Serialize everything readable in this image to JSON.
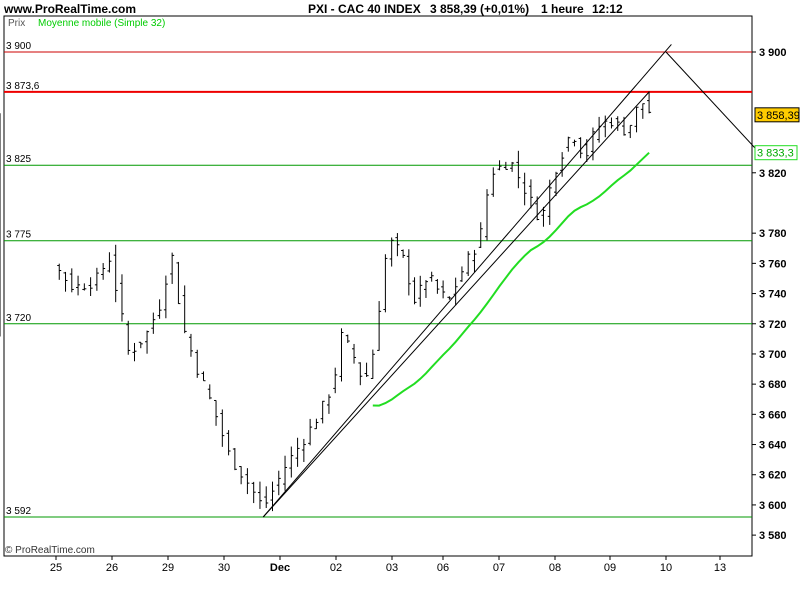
{
  "header": {
    "site": "www.ProRealTime.com",
    "instrument": "PXI - CAC 40 INDEX",
    "last_quote": "3 858,39 (+0,01%)",
    "period": "1 heure",
    "time": "12:12"
  },
  "chart_data": {
    "type": "ohlc",
    "title": "PXI - CAC 40 INDEX",
    "price_label": "Prix",
    "watermark": "© ProRealTime.com",
    "ylim": [
      3570,
      3915
    ],
    "yticks": [
      3580,
      3600,
      3620,
      3640,
      3660,
      3680,
      3700,
      3720,
      3740,
      3760,
      3780,
      3820,
      3900
    ],
    "ytick_labels": [
      "3 580",
      "3 600",
      "3 620",
      "3 640",
      "3 660",
      "3 680",
      "3 700",
      "3 720",
      "3 740",
      "3 760",
      "3 780",
      "3 820",
      "3 900"
    ],
    "x_days": [
      "25",
      "26",
      "29",
      "30",
      "Dec",
      "02",
      "03",
      "06",
      "07",
      "08",
      "09",
      "10",
      "13"
    ],
    "series": [
      {
        "name": "Moyenne mobile (Simple 32)",
        "legend_label": "Moyenne mobile (Simple 32)",
        "color_before": "#dd3311",
        "color_after": "#22dd22",
        "current_value_label": "3 833,3",
        "current_value": 3833.3
      }
    ],
    "last_price": 3858.39,
    "last_price_label": "3 858,39",
    "horizontal_lines": [
      {
        "value": 3900,
        "label": "3 900",
        "color": "#cc0000",
        "width": 1
      },
      {
        "value": 3873.6,
        "label": "3 873,6",
        "color": "#ee0000",
        "width": 2
      },
      {
        "value": 3825,
        "label": "3 825",
        "color": "#009900",
        "width": 1
      },
      {
        "value": 3775,
        "label": "3 775",
        "color": "#009900",
        "width": 1
      },
      {
        "value": 3720,
        "label": "3 720",
        "color": "#009900",
        "width": 1
      },
      {
        "value": 3592,
        "label": "3 592",
        "color": "#009900",
        "width": 1
      }
    ],
    "trend_lines": [
      {
        "from": [
          0.0,
          3592
        ],
        "to": [
          12.0,
          3905
        ]
      },
      {
        "from": [
          9.1,
          3830
        ],
        "to": [
          11.9,
          3900
        ]
      },
      {
        "from": [
          0.0,
          3592
        ],
        "to": [
          11.6,
          3873.6
        ]
      }
    ],
    "grid": false,
    "colors": {
      "bar": "#000000",
      "last_price_box": "#ffcc00"
    }
  }
}
